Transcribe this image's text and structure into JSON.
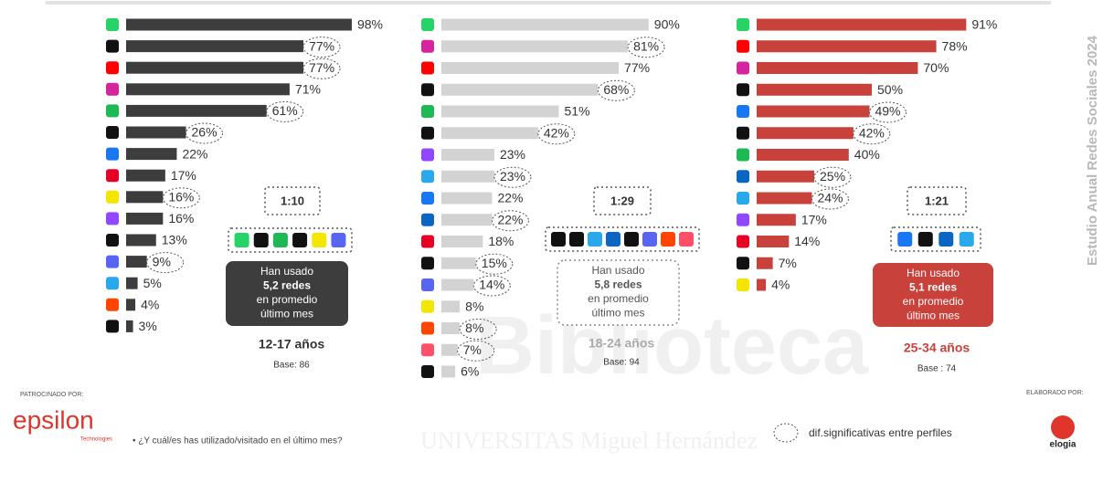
{
  "chart_data": [
    {
      "type": "bar",
      "orientation": "horizontal",
      "color": "#3d3d3d",
      "xlim": [
        0,
        100
      ],
      "categories": [
        null,
        null,
        null,
        null,
        null,
        null,
        null,
        null,
        null,
        null,
        null,
        null,
        null,
        null,
        null
      ],
      "values": [
        98,
        77,
        77,
        71,
        61,
        26,
        22,
        17,
        16,
        16,
        13,
        9,
        5,
        4,
        3
      ],
      "value_labels": [
        "98%",
        "77%",
        "77%",
        "71%",
        "61%",
        "26%",
        "22%",
        "17%",
        "16%",
        "16%",
        "13%",
        "9%",
        "5%",
        "4%",
        "3%"
      ],
      "significant": [
        false,
        true,
        true,
        false,
        true,
        true,
        false,
        false,
        true,
        false,
        false,
        true,
        false,
        false,
        false
      ],
      "ratio": "1:10",
      "summary": [
        "Han usado",
        "5,2 redes",
        "en promedio",
        "último mes"
      ],
      "age": "12-17 años",
      "base": "Base: 86"
    },
    {
      "type": "bar",
      "orientation": "horizontal",
      "color": "#d3d3d3",
      "xlim": [
        0,
        100
      ],
      "categories": [
        null,
        null,
        null,
        null,
        null,
        null,
        null,
        null,
        null,
        null,
        null,
        null,
        null,
        null,
        null,
        null,
        null
      ],
      "values": [
        90,
        81,
        77,
        68,
        51,
        42,
        23,
        23,
        22,
        22,
        18,
        15,
        14,
        8,
        8,
        7,
        6
      ],
      "value_labels": [
        "90%",
        "81%",
        "77%",
        "68%",
        "51%",
        "42%",
        "23%",
        "23%",
        "22%",
        "22%",
        "18%",
        "15%",
        "14%",
        "8%",
        "8%",
        "7%",
        "6%"
      ],
      "significant": [
        false,
        true,
        false,
        true,
        false,
        true,
        false,
        true,
        false,
        true,
        false,
        true,
        true,
        false,
        true,
        true,
        false
      ],
      "ratio": "1:29",
      "summary": [
        "Han usado",
        "5,8 redes",
        "en promedio",
        "último mes"
      ],
      "age": "18-24 años",
      "base": "Base: 94"
    },
    {
      "type": "bar",
      "orientation": "horizontal",
      "color": "#c8413a",
      "xlim": [
        0,
        100
      ],
      "categories": [
        null,
        null,
        null,
        null,
        null,
        null,
        null,
        null,
        null,
        null,
        null,
        null,
        null
      ],
      "values": [
        91,
        78,
        70,
        50,
        49,
        42,
        40,
        25,
        24,
        17,
        14,
        7,
        4
      ],
      "value_labels": [
        "91%",
        "78%",
        "70%",
        "50%",
        "49%",
        "42%",
        "40%",
        "25%",
        "24%",
        "17%",
        "14%",
        "7%",
        "4%"
      ],
      "significant": [
        false,
        false,
        false,
        false,
        true,
        true,
        false,
        true,
        true,
        false,
        false,
        false,
        false
      ],
      "ratio": "1:21",
      "summary": [
        "Han usado",
        "5,1 redes",
        "en promedio",
        "último mes"
      ],
      "age": "25-34 años",
      "base": "Base : 74"
    }
  ],
  "side_title": "Estudio Anual Redes Sociales 2024",
  "sponsor": {
    "label": "PATROCINADO POR:",
    "name": "epsilon",
    "sub": "Technologies"
  },
  "maker": {
    "label": "ELABORADO POR:",
    "name": "elogia"
  },
  "footnote": "• ¿Y cuál/es has utilizado/visitado en el último mes?",
  "legend": "dif.significativas entre perfiles",
  "watermark": [
    "Biblioteca",
    "UNIVERSITAS Miguel Hernández"
  ]
}
